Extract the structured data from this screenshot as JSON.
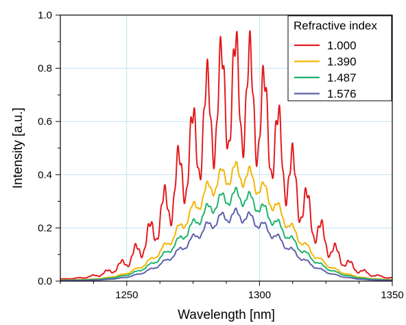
{
  "chart_data": {
    "type": "line",
    "title": "",
    "xlabel": "Wavelength [nm]",
    "ylabel": "Intensity [a.u.]",
    "xlim": [
      1225,
      1350
    ],
    "ylim": [
      0,
      1.0
    ],
    "x_ticks": [
      1250,
      1300,
      1350
    ],
    "x_tick_labels": [
      "1250",
      "1300",
      "1350"
    ],
    "y_ticks": [
      0.0,
      0.2,
      0.4,
      0.6,
      0.8,
      1.0
    ],
    "y_tick_labels": [
      "0.0",
      "0.2",
      "0.4",
      "0.6",
      "0.8",
      "1.0"
    ],
    "grid": true,
    "legend": {
      "title": "Refractive index",
      "position": "top-right"
    },
    "series": [
      {
        "name": "1.000",
        "color": "#e31a1c",
        "envelope": {
          "peak": 0.7,
          "center": 1291,
          "sigma": 19,
          "fringe_period": 5.4,
          "fringe_depth": 0.3,
          "ripple_period": 1.6,
          "ripple_depth": 0.07,
          "baseline": 0.006
        }
      },
      {
        "name": "1.390",
        "color": "#f2b600",
        "envelope": {
          "peak": 0.4,
          "center": 1291,
          "sigma": 17.5,
          "fringe_period": 5.4,
          "fringe_depth": 0.1,
          "ripple_period": 1.6,
          "ripple_depth": 0.02,
          "baseline": 0.004
        }
      },
      {
        "name": "1.487",
        "color": "#1db36b",
        "envelope": {
          "peak": 0.315,
          "center": 1291,
          "sigma": 17.5,
          "fringe_period": 5.4,
          "fringe_depth": 0.09,
          "ripple_period": 1.6,
          "ripple_depth": 0.02,
          "baseline": 0.003
        }
      },
      {
        "name": "1.576",
        "color": "#5c5fa8",
        "envelope": {
          "peak": 0.245,
          "center": 1291,
          "sigma": 17,
          "fringe_period": 5.4,
          "fringe_depth": 0.09,
          "ripple_period": 1.6,
          "ripple_depth": 0.02,
          "baseline": 0.002
        }
      }
    ]
  }
}
